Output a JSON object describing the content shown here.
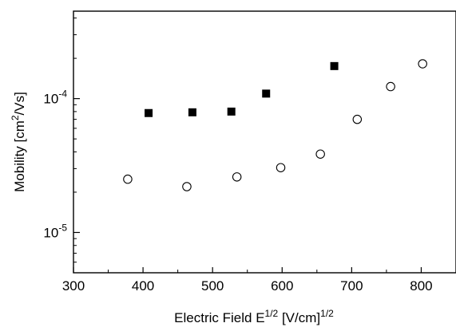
{
  "chart_data": {
    "type": "scatter",
    "title": "",
    "xlabel": {
      "main": "Electric Field E",
      "sup1": "1/2",
      "mid": " [V/cm]",
      "sup2": "1/2"
    },
    "ylabel": {
      "main": "Mobility [cm",
      "sup": "2",
      "tail": "/Vs]"
    },
    "xlim": [
      300,
      850
    ],
    "ylim": [
      5e-06,
      0.00045
    ],
    "yscale": "log",
    "xticks": [
      300,
      400,
      500,
      600,
      700,
      800
    ],
    "xtick_labels": [
      "300",
      "400",
      "500",
      "600",
      "700",
      "800"
    ],
    "yticks": [
      {
        "value": 0.0001,
        "base": "10",
        "exp": "-4"
      },
      {
        "value": 1e-05,
        "base": "10",
        "exp": "-5"
      }
    ],
    "grid": false,
    "legend": "none",
    "series": [
      {
        "marker": "filled-square",
        "color": "#000000",
        "points": [
          {
            "x": 408,
            "y": 7.8e-05
          },
          {
            "x": 471,
            "y": 7.9e-05
          },
          {
            "x": 527,
            "y": 8e-05
          },
          {
            "x": 577,
            "y": 0.000109
          },
          {
            "x": 675,
            "y": 0.000175
          }
        ]
      },
      {
        "marker": "open-circle",
        "color": "#000000",
        "points": [
          {
            "x": 378,
            "y": 2.5e-05
          },
          {
            "x": 463,
            "y": 2.2e-05
          },
          {
            "x": 535,
            "y": 2.6e-05
          },
          {
            "x": 598,
            "y": 3.05e-05
          },
          {
            "x": 655,
            "y": 3.85e-05
          },
          {
            "x": 708,
            "y": 7e-05
          },
          {
            "x": 756,
            "y": 0.000123
          },
          {
            "x": 802,
            "y": 0.000182
          }
        ]
      }
    ]
  }
}
